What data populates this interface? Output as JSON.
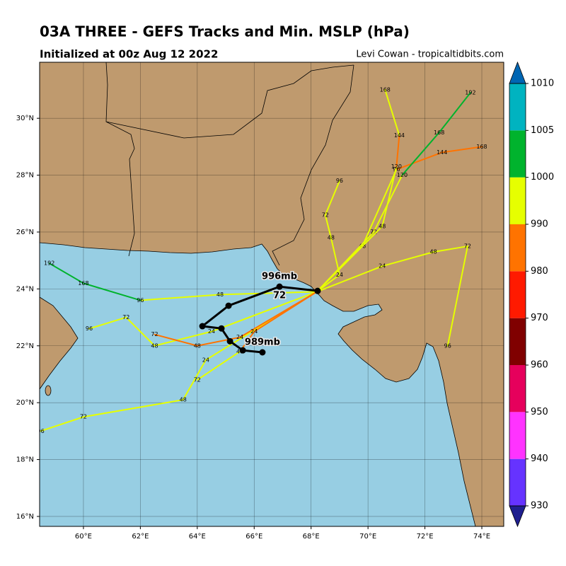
{
  "chart_data": {
    "type": "track_map",
    "title": "03A THREE - GEFS Tracks and Min. MSLP (hPa)",
    "subtitle": "Initialized at 00z Aug 12 2022",
    "credit": "Levi Cowan - tropicaltidbits.com",
    "xlim": [
      58.46,
      74.77
    ],
    "ylim": [
      15.65,
      31.97
    ],
    "xticks": [
      {
        "value": 60,
        "label": "60°E"
      },
      {
        "value": 62,
        "label": "62°E"
      },
      {
        "value": 64,
        "label": "64°E"
      },
      {
        "value": 66,
        "label": "66°E"
      },
      {
        "value": 68,
        "label": "68°E"
      },
      {
        "value": 70,
        "label": "70°E"
      },
      {
        "value": 72,
        "label": "72°E"
      },
      {
        "value": 74,
        "label": "74°E"
      }
    ],
    "yticks": [
      {
        "value": 16,
        "label": "16°N"
      },
      {
        "value": 18,
        "label": "18°N"
      },
      {
        "value": 20,
        "label": "20°N"
      },
      {
        "value": 22,
        "label": "22°N"
      },
      {
        "value": 24,
        "label": "24°N"
      },
      {
        "value": 26,
        "label": "26°N"
      },
      {
        "value": 28,
        "label": "28°N"
      },
      {
        "value": 30,
        "label": "30°N"
      }
    ],
    "grid": true,
    "colorbar": {
      "levels": [
        930,
        940,
        950,
        960,
        970,
        980,
        990,
        1000,
        1005,
        1010
      ],
      "colors": [
        "#6633ff",
        "#ff33ff",
        "#e6005c",
        "#800000",
        "#ff1a00",
        "#ff7300",
        "#e6ff00",
        "#00b32d",
        "#00b3c0"
      ],
      "extend_colors": [
        "#1f1f8f",
        "#0066b3"
      ],
      "ticks": [
        930,
        940,
        950,
        960,
        970,
        980,
        990,
        1000,
        1005,
        1010
      ]
    },
    "tracks": [
      {
        "lon": [
          68.2,
          64.5,
          62.5,
          61.5,
          60.2
        ],
        "lat": [
          23.9,
          22.5,
          22.0,
          23.0,
          22.6
        ],
        "mslp": [
          998,
          994,
          990,
          992,
          996
        ],
        "hours": [
          0,
          24,
          48,
          72,
          96
        ]
      },
      {
        "lon": [
          68.2,
          64.3,
          63.5,
          60.0,
          58.5
        ],
        "lat": [
          23.9,
          21.5,
          20.1,
          19.5,
          19.0
        ],
        "mslp": [
          998,
          992,
          994,
          996,
          998
        ],
        "hours": [
          0,
          24,
          48,
          72,
          96
        ]
      },
      {
        "lon": [
          68.2,
          65.5,
          64.0,
          62.5
        ],
        "lat": [
          23.9,
          22.3,
          22.0,
          22.4
        ],
        "mslp": [
          996,
          985,
          984,
          988
        ],
        "hours": [
          0,
          24,
          48,
          72
        ]
      },
      {
        "lon": [
          68.2,
          69.0,
          68.7,
          68.5,
          69.0
        ],
        "lat": [
          23.9,
          24.5,
          25.8,
          26.6,
          27.8
        ],
        "mslp": [
          998,
          996,
          994,
          996,
          997
        ],
        "hours": [
          0,
          24,
          48,
          72,
          96
        ]
      },
      {
        "lon": [
          68.2,
          70.5,
          72.3,
          73.5,
          72.8
        ],
        "lat": [
          23.9,
          24.8,
          25.3,
          25.5,
          22.0
        ],
        "mslp": [
          998,
          997,
          998,
          999,
          999
        ],
        "hours": [
          0,
          24,
          48,
          72,
          96
        ]
      },
      {
        "lon": [
          68.2,
          69.8,
          71.0,
          72.6,
          74.0
        ],
        "lat": [
          23.9,
          25.5,
          28.2,
          28.8,
          29.0
        ],
        "mslp": [
          998,
          996,
          995,
          985,
          984
        ],
        "hours": [
          0,
          48,
          96,
          144,
          168
        ]
      },
      {
        "lon": [
          68.2,
          64.8,
          62.0,
          60.0,
          58.8
        ],
        "lat": [
          23.9,
          23.8,
          23.6,
          24.2,
          24.9
        ],
        "mslp": [
          998,
          997,
          999,
          1001,
          1002
        ],
        "hours": [
          0,
          48,
          96,
          168,
          192
        ]
      },
      {
        "lon": [
          68.2,
          70.2,
          71.2,
          72.5,
          73.6
        ],
        "lat": [
          23.9,
          26.0,
          28.0,
          29.5,
          30.9
        ],
        "mslp": [
          998,
          996,
          994,
          1002,
          1004
        ],
        "hours": [
          0,
          72,
          120,
          168,
          192
        ]
      },
      {
        "lon": [
          68.2,
          66.0,
          65.5,
          64.0
        ],
        "lat": [
          23.9,
          22.5,
          21.8,
          20.8
        ],
        "mslp": [
          998,
          984,
          982,
          990
        ],
        "hours": [
          0,
          24,
          48,
          72
        ]
      },
      {
        "lon": [
          68.2,
          70.5,
          71.0,
          71.1,
          70.6
        ],
        "lat": [
          23.9,
          26.2,
          28.3,
          29.4,
          31.0
        ],
        "mslp": [
          998,
          997,
          995,
          986,
          993
        ],
        "hours": [
          0,
          48,
          120,
          144,
          168
        ]
      }
    ],
    "mean_track": {
      "lon": [
        68.23,
        66.89,
        65.1,
        64.18,
        64.85,
        65.15,
        65.6,
        66.29
      ],
      "lat": [
        23.93,
        24.08,
        23.41,
        22.69,
        22.61,
        22.16,
        21.84,
        21.77
      ],
      "point_labels": [
        null,
        "996mb",
        null,
        null,
        null,
        null,
        null,
        "989mb"
      ],
      "hours": [
        null,
        72,
        null,
        null,
        null,
        null,
        null,
        null
      ]
    }
  }
}
